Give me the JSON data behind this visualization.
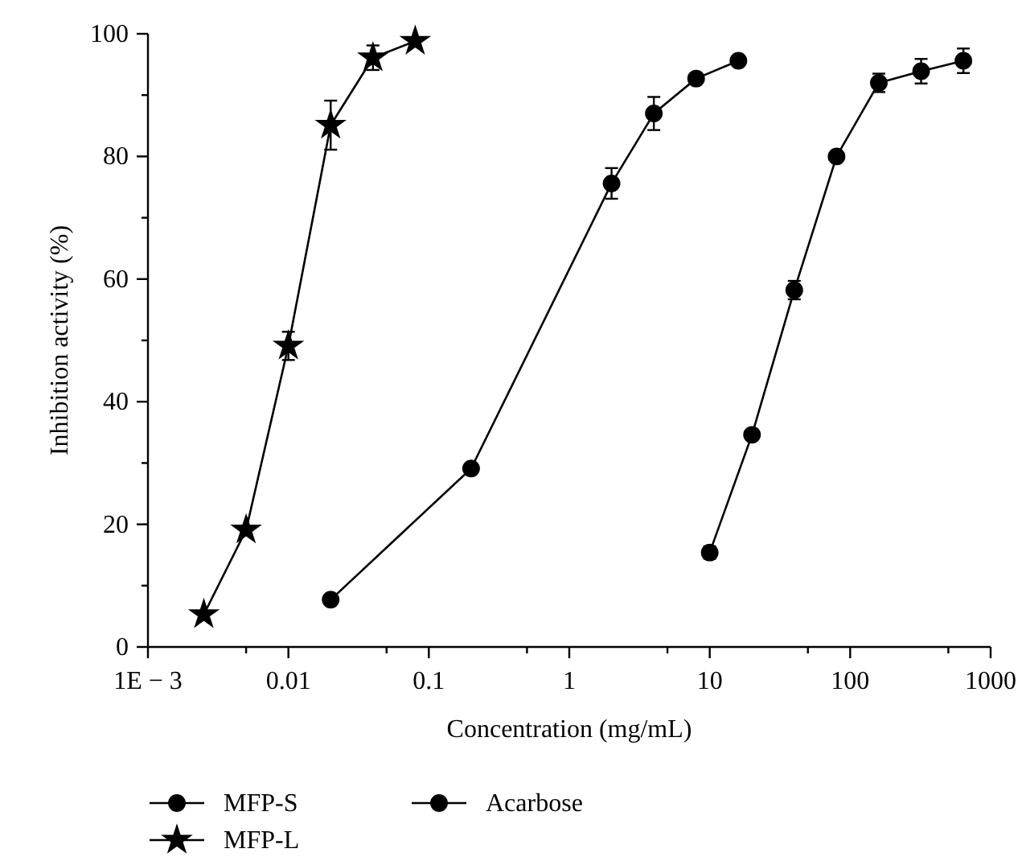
{
  "chart_data": {
    "type": "line",
    "xlabel": "Concentration (mg/mL)",
    "ylabel": "Inhibition activity (%)",
    "log": "x",
    "xlim": [
      0.001,
      1000
    ],
    "xticks": [
      {
        "value": 0.001,
        "label": "1E − 3"
      },
      {
        "value": 0.005,
        "label": null
      },
      0.01,
      {
        "value": 0.05,
        "label": null
      },
      0.1,
      {
        "value": 0.5,
        "label": null
      },
      1,
      {
        "value": 5,
        "label": null
      },
      10,
      {
        "value": 50,
        "label": null
      },
      100,
      {
        "value": 500,
        "label": null
      },
      1000
    ],
    "ylim": [
      0,
      100
    ],
    "yticks": [
      0,
      {
        "value": 10,
        "label": null
      },
      20,
      {
        "value": 30,
        "label": null
      },
      40,
      {
        "value": 50,
        "label": null
      },
      60,
      {
        "value": 70,
        "label": null
      },
      80,
      {
        "value": 90,
        "label": null
      },
      100
    ],
    "grid": false,
    "legend": "bottom",
    "line_style": "solid",
    "series": [
      {
        "name": "MFP-S",
        "color": "#000000",
        "marker": "circle",
        "x": [
          10,
          20,
          40,
          80,
          160,
          320,
          640
        ],
        "values": [
          15.4,
          34.6,
          58.2,
          80,
          92,
          93.9,
          95.6
        ],
        "errors": [
          1,
          null,
          1.5,
          null,
          1.5,
          2,
          2
        ]
      },
      {
        "name": "MFP-L",
        "color": "#000000",
        "marker": "star",
        "x": [
          0.0025,
          0.005,
          0.01,
          0.02,
          0.04,
          0.08
        ],
        "values": [
          5.3,
          19.1,
          49.1,
          85.1,
          96.1,
          98.8
        ],
        "errors": [
          null,
          null,
          2.3,
          4,
          2,
          null
        ]
      },
      {
        "name": "Acarbose",
        "color": "#000000",
        "marker": "circle",
        "x": [
          0.02,
          0.2,
          2,
          4,
          8,
          16
        ],
        "values": [
          7.7,
          29.1,
          75.6,
          87,
          92.7,
          95.6
        ],
        "errors": [
          null,
          null,
          2.5,
          2.7,
          null,
          null
        ]
      }
    ]
  }
}
